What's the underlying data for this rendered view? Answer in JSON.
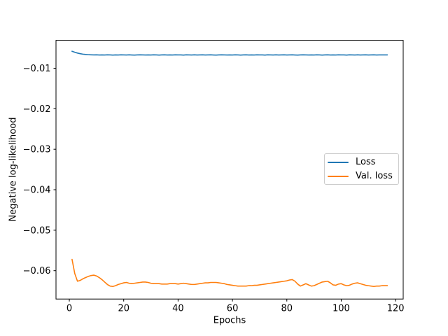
{
  "figure": {
    "background": "#ffffff"
  },
  "chart_data": {
    "type": "line",
    "title": "",
    "xlabel": "Epochs",
    "ylabel": "Negative log-likelihood",
    "xlim": [
      -4.9,
      122.8
    ],
    "ylim": [
      -0.067,
      -0.0031
    ],
    "grid": false,
    "x_ticks": [
      0,
      20,
      40,
      60,
      80,
      100,
      120
    ],
    "x_tick_labels": [
      "0",
      "20",
      "40",
      "60",
      "80",
      "100",
      "120"
    ],
    "y_ticks": [
      -0.06,
      -0.05,
      -0.04,
      -0.03,
      -0.02,
      -0.01
    ],
    "y_tick_labels": [
      "−0.06",
      "−0.05",
      "−0.04",
      "−0.03",
      "−0.02",
      "−0.01"
    ],
    "legend": {
      "position": "center right",
      "entries": [
        "Loss",
        "Val. loss"
      ]
    },
    "axis_color": "#000000",
    "x": [
      1,
      2,
      3,
      4,
      5,
      6,
      7,
      8,
      9,
      10,
      11,
      12,
      13,
      14,
      15,
      16,
      17,
      18,
      19,
      20,
      21,
      22,
      23,
      24,
      25,
      26,
      27,
      28,
      29,
      30,
      31,
      32,
      33,
      34,
      35,
      36,
      37,
      38,
      39,
      40,
      41,
      42,
      43,
      44,
      45,
      46,
      47,
      48,
      49,
      50,
      51,
      52,
      53,
      54,
      55,
      56,
      57,
      58,
      59,
      60,
      61,
      62,
      63,
      64,
      65,
      66,
      67,
      68,
      69,
      70,
      71,
      72,
      73,
      74,
      75,
      76,
      77,
      78,
      79,
      80,
      81,
      82,
      83,
      84,
      85,
      86,
      87,
      88,
      89,
      90,
      91,
      92,
      93,
      94,
      95,
      96,
      97,
      98,
      99,
      100,
      101,
      102,
      103,
      104,
      105,
      106,
      107,
      108,
      109,
      110,
      111,
      112,
      113,
      114,
      115,
      116,
      117
    ],
    "series": [
      {
        "name": "Loss",
        "color": "#1f77b4",
        "values": [
          -0.0058,
          -0.00605,
          -0.00625,
          -0.0064,
          -0.00652,
          -0.0066,
          -0.00665,
          -0.00668,
          -0.0067,
          -0.00668,
          -0.00672,
          -0.0067,
          -0.00673,
          -0.00669,
          -0.00671,
          -0.00674,
          -0.0067,
          -0.00672,
          -0.00668,
          -0.00671,
          -0.00673,
          -0.00669,
          -0.00672,
          -0.00674,
          -0.0067,
          -0.00668,
          -0.00671,
          -0.00673,
          -0.0067,
          -0.00672,
          -0.00669,
          -0.00671,
          -0.00674,
          -0.0067,
          -0.00668,
          -0.00672,
          -0.0067,
          -0.00673,
          -0.00669,
          -0.00671,
          -0.0067,
          -0.00674,
          -0.00668,
          -0.00671,
          -0.00673,
          -0.00669,
          -0.00672,
          -0.0067,
          -0.00668,
          -0.00673,
          -0.00671,
          -0.00669,
          -0.00672,
          -0.00674,
          -0.0067,
          -0.00668,
          -0.00671,
          -0.00673,
          -0.0067,
          -0.00672,
          -0.00669,
          -0.00671,
          -0.00674,
          -0.0067,
          -0.00668,
          -0.00672,
          -0.0067,
          -0.00673,
          -0.00669,
          -0.00671,
          -0.0067,
          -0.00674,
          -0.00668,
          -0.00671,
          -0.00673,
          -0.00669,
          -0.00672,
          -0.0067,
          -0.00668,
          -0.00673,
          -0.00671,
          -0.00669,
          -0.00672,
          -0.00674,
          -0.0067,
          -0.00668,
          -0.00671,
          -0.00673,
          -0.0067,
          -0.00672,
          -0.00669,
          -0.00671,
          -0.00674,
          -0.0067,
          -0.00668,
          -0.00672,
          -0.0067,
          -0.00673,
          -0.00669,
          -0.00671,
          -0.0067,
          -0.00674,
          -0.00668,
          -0.00671,
          -0.00673,
          -0.00669,
          -0.00672,
          -0.0067,
          -0.00668,
          -0.00673,
          -0.00671,
          -0.00669,
          -0.00672,
          -0.0067,
          -0.00671,
          -0.0067,
          -0.0067
        ]
      },
      {
        "name": "Val. loss",
        "color": "#ff7f0e",
        "values": [
          -0.0572,
          -0.0607,
          -0.0626,
          -0.0624,
          -0.062,
          -0.0617,
          -0.0614,
          -0.0612,
          -0.0611,
          -0.0613,
          -0.0617,
          -0.0622,
          -0.0628,
          -0.0634,
          -0.0638,
          -0.0639,
          -0.0637,
          -0.0634,
          -0.0632,
          -0.063,
          -0.0629,
          -0.0631,
          -0.0632,
          -0.0631,
          -0.063,
          -0.0629,
          -0.0628,
          -0.0628,
          -0.0629,
          -0.0631,
          -0.0632,
          -0.0632,
          -0.0632,
          -0.0633,
          -0.0633,
          -0.0633,
          -0.0632,
          -0.0632,
          -0.0632,
          -0.0633,
          -0.0632,
          -0.0631,
          -0.0632,
          -0.0633,
          -0.0634,
          -0.0634,
          -0.0633,
          -0.0632,
          -0.0631,
          -0.063,
          -0.063,
          -0.0629,
          -0.0629,
          -0.0629,
          -0.063,
          -0.0631,
          -0.0632,
          -0.0634,
          -0.0635,
          -0.0636,
          -0.0637,
          -0.0638,
          -0.0638,
          -0.0638,
          -0.0638,
          -0.0637,
          -0.0637,
          -0.0636,
          -0.0636,
          -0.0635,
          -0.0634,
          -0.0633,
          -0.0632,
          -0.0631,
          -0.063,
          -0.0629,
          -0.0628,
          -0.0627,
          -0.0626,
          -0.0625,
          -0.0623,
          -0.0622,
          -0.0626,
          -0.0633,
          -0.0638,
          -0.0635,
          -0.0632,
          -0.0635,
          -0.0638,
          -0.0637,
          -0.0634,
          -0.0631,
          -0.0628,
          -0.0627,
          -0.0626,
          -0.063,
          -0.0635,
          -0.0636,
          -0.0633,
          -0.0632,
          -0.0635,
          -0.0637,
          -0.0636,
          -0.0633,
          -0.0631,
          -0.063,
          -0.0632,
          -0.0634,
          -0.0636,
          -0.0637,
          -0.0638,
          -0.0639,
          -0.0638,
          -0.0638,
          -0.0637,
          -0.0637,
          -0.0637
        ]
      }
    ]
  }
}
